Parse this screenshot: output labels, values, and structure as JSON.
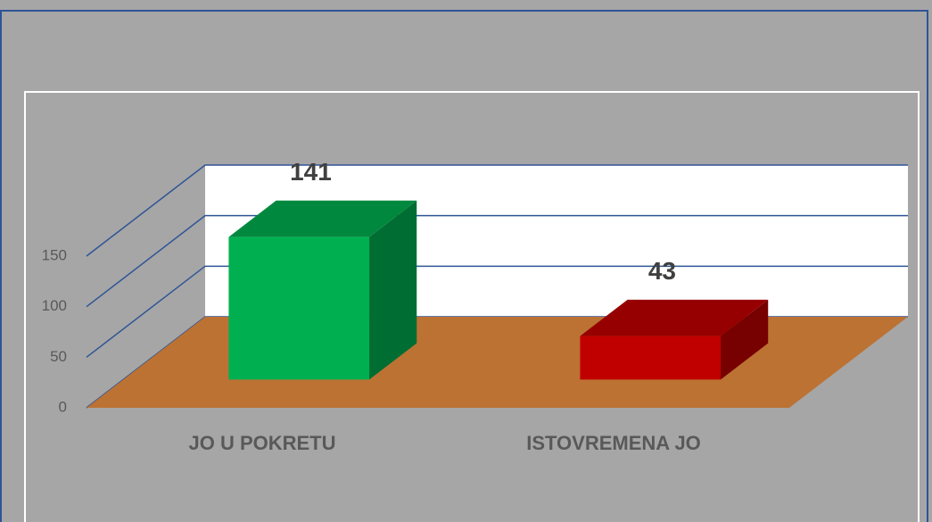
{
  "chart_data": {
    "type": "bar",
    "categories": [
      "JO U POKRETU",
      "ISTOVREMENA JO"
    ],
    "values": [
      141,
      43
    ],
    "colors": [
      "#00b050",
      "#c00000"
    ],
    "ylim": [
      0,
      150
    ],
    "yticks": [
      0,
      50,
      100,
      150
    ],
    "grid": true
  }
}
